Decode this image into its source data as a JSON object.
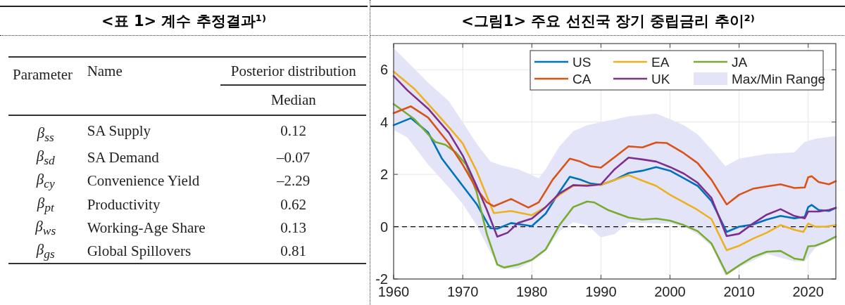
{
  "chart_data": [
    {
      "type": "other",
      "title": "<표 1> 계수 추정결과¹⁾",
      "annotations": [
        "Parameter",
        "Name",
        "Posterior distribution",
        "Median",
        "β$_{ss}$",
        "SA Supply",
        "0.12",
        "β$_{sd}$",
        "SA Demand",
        "–0.07",
        "β$_{cy}$",
        "Convenience Yield",
        "–2.29",
        "β$_{pt}$",
        "Productivity",
        "0.62",
        "β$_{ws}$",
        "Working-Age Share",
        "0.13",
        "β$_{gs}$",
        "Global Spillovers",
        "0.81"
      ]
    },
    {
      "type": "line",
      "title": "<그림1> 주요 선진국 장기 중립금리 추이²⁾",
      "xlim": [
        1960,
        2024
      ],
      "xticks": [
        1960,
        1970,
        1980,
        1990,
        2000,
        2010,
        2020
      ],
      "ylim": [
        -2,
        7
      ],
      "yticks": [
        {
          "value": -2,
          "label": "-2"
        },
        0,
        2,
        4,
        6
      ],
      "grid": true,
      "legend": "top right",
      "line_style": "solid",
      "ref_lines": [
        {
          "axis": "y",
          "value": 0,
          "label": null,
          "color": "#000000",
          "line_style": "dashed"
        }
      ],
      "series": [
        {
          "name": "US",
          "color": "#0072bd",
          "x": [
            1960,
            1962.5,
            1965,
            1967,
            1970,
            1972,
            1974,
            1975,
            1977,
            1980,
            1982,
            1984,
            1985.5,
            1987,
            1988.5,
            1990,
            1992,
            1994,
            1996,
            1998,
            2000,
            2002,
            2004,
            2006,
            2008.2,
            2010,
            2012,
            2014,
            2016,
            2018,
            2019.5,
            2020,
            2020.5,
            2021.5,
            2023,
            2024
          ],
          "values": [
            3.88,
            4.15,
            3.6,
            2.6,
            1.56,
            0.87,
            -0.06,
            -0.08,
            0.14,
            0.02,
            0.5,
            1.33,
            1.91,
            1.8,
            1.65,
            1.6,
            1.79,
            2.05,
            2.14,
            2.28,
            2.14,
            1.85,
            1.56,
            0.98,
            -0.2,
            0,
            0.08,
            0.27,
            0.41,
            0.32,
            0.38,
            0.75,
            0.83,
            0.64,
            0.6,
            0.72
          ]
        },
        {
          "name": "EA",
          "color": "#edb120",
          "x": [
            1960,
            1963,
            1966,
            1968.5,
            1970,
            1972,
            1973.5,
            1974.5,
            1977,
            1980,
            1982,
            1984,
            1986,
            1988,
            1990,
            1992,
            1994,
            1996,
            1998,
            2000,
            2002,
            2004,
            2006,
            2008.2,
            2010,
            2012,
            2014,
            2016,
            2018,
            2019.3,
            2020,
            2021,
            2022.5,
            2024
          ],
          "values": [
            5.93,
            5.27,
            4.4,
            3.65,
            3.18,
            2.14,
            1.16,
            0.52,
            0.6,
            0.44,
            0.75,
            1.22,
            1.56,
            1.59,
            1.6,
            1.79,
            1.97,
            1.76,
            1.56,
            1.22,
            0.93,
            0.64,
            0.29,
            -0.9,
            -0.73,
            -0.46,
            -0.23,
            0.06,
            -0.12,
            -0.2,
            0.12,
            0,
            0,
            0.06
          ]
        },
        {
          "name": "JA",
          "color": "#77ac30",
          "x": [
            1960,
            1963,
            1966,
            1967.5,
            1969,
            1970.5,
            1972,
            1973.5,
            1975,
            1976,
            1978,
            1980,
            1982,
            1984,
            1986,
            1988,
            1989,
            1991,
            1994,
            1996,
            1998,
            2000,
            2002,
            2004,
            2006,
            2008.2,
            2010,
            2012,
            2014,
            2016,
            2018,
            2019.3,
            2020,
            2021,
            2022.5,
            2024
          ],
          "values": [
            4.69,
            4.11,
            3.24,
            3.13,
            2.84,
            2.37,
            1.33,
            -0.29,
            -1.45,
            -1.56,
            -1.45,
            -1.27,
            -0.87,
            0.06,
            0.75,
            0.96,
            0.93,
            0.64,
            0.35,
            0.27,
            0.31,
            0.23,
            0.06,
            -0.17,
            -0.64,
            -1.8,
            -1.48,
            -1.16,
            -0.96,
            -0.93,
            -1.22,
            -1.27,
            -0.75,
            -0.73,
            -0.58,
            -0.38
          ]
        },
        {
          "name": "CA",
          "color": "#d95319",
          "x": [
            1960,
            1962.5,
            1965,
            1968,
            1970,
            1972,
            1973.5,
            1974.5,
            1977,
            1979.5,
            1981,
            1983,
            1985.5,
            1987,
            1988.5,
            1990,
            1992,
            1994,
            1996,
            1998,
            1999.5,
            2002,
            2004,
            2006,
            2008.2,
            2010,
            2012,
            2014,
            2016,
            2018,
            2019.5,
            2020,
            2020.5,
            2021.5,
            2023,
            2024
          ],
          "values": [
            4.34,
            4.6,
            4.17,
            3.18,
            2.37,
            1.45,
            0.93,
            0.78,
            1.06,
            0.73,
            0.93,
            1.79,
            2.6,
            2.49,
            2.31,
            2.26,
            2.66,
            3.07,
            3.03,
            3.22,
            3.2,
            2.81,
            2.43,
            1.79,
            0.85,
            1.22,
            1.45,
            1.54,
            1.62,
            1.48,
            1.5,
            1.89,
            1.93,
            1.71,
            1.62,
            1.74
          ]
        },
        {
          "name": "UK",
          "color": "#7e2f8e",
          "x": [
            1960,
            1962,
            1965,
            1968,
            1970,
            1972,
            1973.5,
            1975,
            1976.5,
            1978,
            1980,
            1982,
            1984,
            1986,
            1988,
            1990,
            1992,
            1994,
            1996,
            1998,
            2000,
            2002,
            2004,
            2006,
            2008.2,
            2010,
            2012,
            2014,
            2016,
            2018,
            2019.5,
            2020,
            2021.5,
            2023,
            2024
          ],
          "values": [
            5.76,
            5.21,
            4.51,
            3.59,
            2.72,
            1.56,
            0.64,
            -0.38,
            -0.23,
            0.14,
            0.31,
            0.75,
            1.27,
            1.59,
            1.56,
            1.62,
            2.2,
            2.64,
            2.57,
            2.49,
            2.28,
            2.03,
            1.68,
            1.1,
            -0.36,
            -0.27,
            0.12,
            0.46,
            0.67,
            0.41,
            0.32,
            0.58,
            0.58,
            0.64,
            0.72
          ]
        },
        {
          "name": "Max/Min Range",
          "type": "line",
          "color": "#e4e4f8",
          "x": [
            1960,
            1962,
            1965,
            1968,
            1970,
            1972,
            1974,
            1975.5,
            1978,
            1980,
            1981,
            1982,
            1984,
            1986,
            1988,
            1990,
            1992,
            1994,
            1998,
            2000,
            2002,
            2004,
            2006,
            2008,
            2010,
            2014,
            2018,
            2019.5,
            2021,
            2024
          ],
          "values": [
            null,
            null,
            null,
            null,
            null,
            null,
            null,
            null,
            null,
            null,
            null,
            null,
            null,
            null,
            null,
            null,
            null,
            null,
            null,
            null,
            null,
            null,
            null,
            null,
            null,
            null,
            null,
            null,
            null,
            null
          ],
          "upper": [
            6.83,
            6.3,
            5.5,
            4.8,
            4.0,
            3.18,
            2.49,
            2.35,
            2.2,
            1.97,
            1.85,
            2.2,
            3.07,
            3.65,
            3.88,
            4.0,
            4.1,
            4.22,
            4.32,
            4.11,
            3.88,
            3.53,
            2.95,
            2.31,
            2.6,
            2.78,
            2.84,
            3.24,
            3.36,
            3.47
          ],
          "lower": [
            3.7,
            3.41,
            2.37,
            1.5,
            0.87,
            0.06,
            -0.98,
            -1.62,
            -1.6,
            -1.33,
            -1.15,
            -0.93,
            -0.17,
            0.17,
            0.06,
            -0.41,
            -0.29,
            0.17,
            0.12,
            0.12,
            0.0,
            -0.29,
            -0.75,
            -1.88,
            -1.55,
            -1.04,
            -1.33,
            -1.33,
            -0.81,
            -0.46
          ]
        }
      ]
    }
  ]
}
